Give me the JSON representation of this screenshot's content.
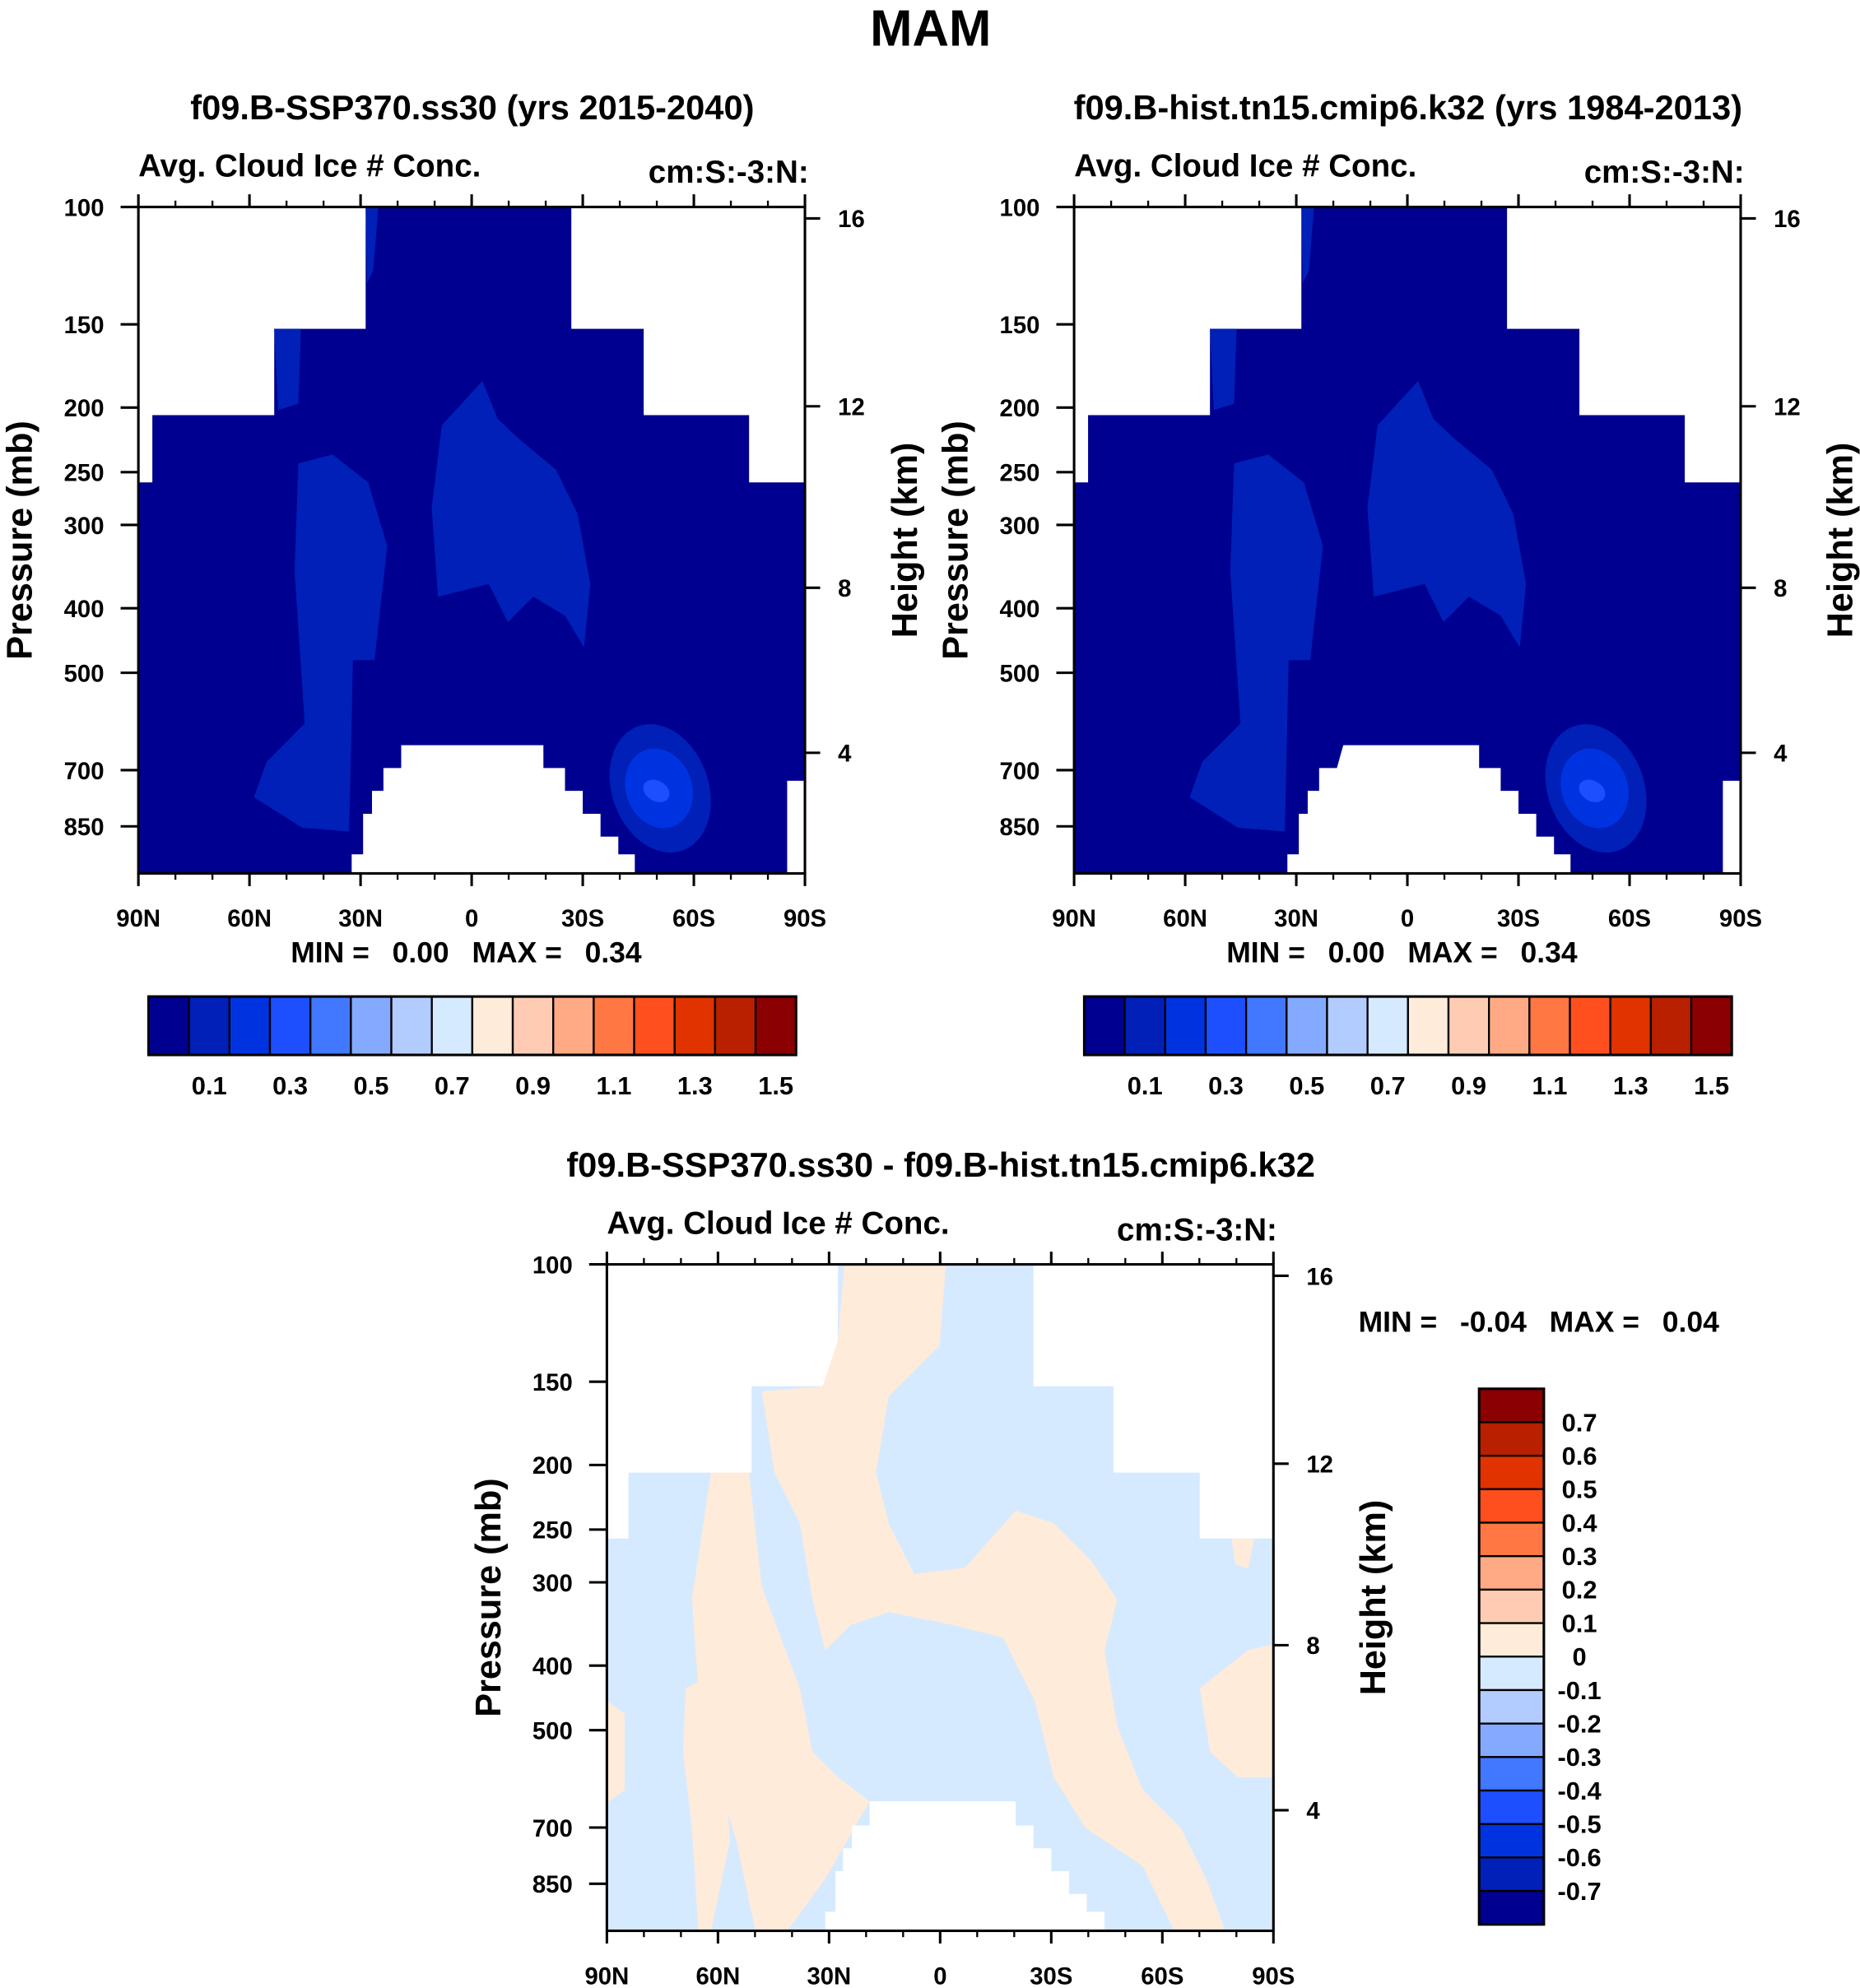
{
  "page_title": "MAM",
  "chart_data": [
    {
      "type": "heatmap",
      "subtype": "filled-contour-latitude-pressure",
      "title": "f09.B-SSP370.ss30 (yrs 2015-2040)",
      "left_label": "Avg. Cloud Ice # Conc.",
      "right_label": "cm:S:-3:N:",
      "ylabel": "Pressure (mb)",
      "ylabel_right": "Height (km)",
      "x_ticks": [
        "90N",
        "60N",
        "30N",
        "0",
        "30S",
        "60S",
        "90S"
      ],
      "y_ticks": [
        "100",
        "150",
        "200",
        "250",
        "300",
        "400",
        "500",
        "700",
        "850"
      ],
      "y_ticks_right": [
        "16",
        "12",
        "8",
        "4"
      ],
      "stats": {
        "min_label": "MIN =",
        "min": "0.00",
        "max_label": "MAX =",
        "max": "0.34"
      },
      "colorbar": {
        "orientation": "horizontal",
        "labels": [
          "0.1",
          "0.3",
          "0.5",
          "0.7",
          "0.9",
          "1.1",
          "1.3",
          "1.5"
        ]
      }
    },
    {
      "type": "heatmap",
      "subtype": "filled-contour-latitude-pressure",
      "title": "f09.B-hist.tn15.cmip6.k32 (yrs 1984-2013)",
      "left_label": "Avg. Cloud Ice # Conc.",
      "right_label": "cm:S:-3:N:",
      "ylabel": "Pressure (mb)",
      "ylabel_right": "Height (km)",
      "x_ticks": [
        "90N",
        "60N",
        "30N",
        "0",
        "30S",
        "60S",
        "90S"
      ],
      "y_ticks": [
        "100",
        "150",
        "200",
        "250",
        "300",
        "400",
        "500",
        "700",
        "850"
      ],
      "y_ticks_right": [
        "16",
        "12",
        "8",
        "4"
      ],
      "stats": {
        "min_label": "MIN =",
        "min": "0.00",
        "max_label": "MAX =",
        "max": "0.34"
      },
      "colorbar": {
        "orientation": "horizontal",
        "labels": [
          "0.1",
          "0.3",
          "0.5",
          "0.7",
          "0.9",
          "1.1",
          "1.3",
          "1.5"
        ]
      }
    },
    {
      "type": "heatmap",
      "subtype": "filled-contour-latitude-pressure-difference",
      "title": "f09.B-SSP370.ss30 - f09.B-hist.tn15.cmip6.k32",
      "left_label": "Avg. Cloud Ice # Conc.",
      "right_label": "cm:S:-3:N:",
      "ylabel": "Pressure (mb)",
      "ylabel_right": "Height (km)",
      "x_ticks": [
        "90N",
        "60N",
        "30N",
        "0",
        "30S",
        "60S",
        "90S"
      ],
      "y_ticks": [
        "100",
        "150",
        "200",
        "250",
        "300",
        "400",
        "500",
        "700",
        "850"
      ],
      "y_ticks_right": [
        "16",
        "12",
        "8",
        "4"
      ],
      "stats": {
        "min_label": "MIN =",
        "min": "-0.04",
        "max_label": "MAX =",
        "max": "0.04"
      },
      "colorbar": {
        "orientation": "vertical",
        "labels": [
          "0.7",
          "0.6",
          "0.5",
          "0.4",
          "0.3",
          "0.2",
          "0.1",
          "0",
          "-0.1",
          "-0.2",
          "-0.3",
          "-0.4",
          "-0.5",
          "-0.6",
          "-0.7"
        ]
      }
    }
  ],
  "colors": [
    "#000090",
    "#0020B8",
    "#0033E0",
    "#1E4FFF",
    "#4277FF",
    "#84AAFF",
    "#B3CCFF",
    "#D6EAFF",
    "#FFEBDA",
    "#FFCCB3",
    "#FFAA84",
    "#FF7742",
    "#FF4F1E",
    "#E03300",
    "#B82000",
    "#8B0000"
  ]
}
